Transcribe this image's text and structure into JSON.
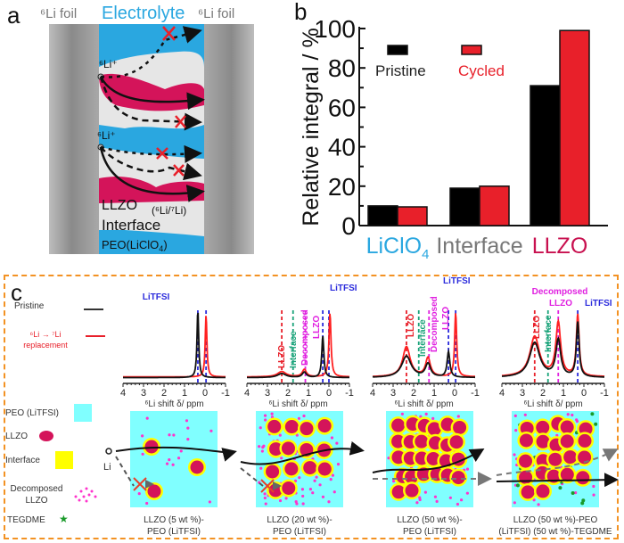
{
  "panel_a": {
    "letter": "a",
    "left_label": "⁶Li foil",
    "center_label": "Electrolyte",
    "right_label": "⁶Li foil",
    "ion_label_1": "⁶Li⁺",
    "ion_label_2": "⁶Li⁺",
    "llzo_label": "LLZO",
    "llzo_sub": "(⁶Li/⁷Li)",
    "interface_label": "Interface",
    "peo_label": "PEO(LiClO",
    "peo_sub": "4",
    "peo_close": ")",
    "colors": {
      "electrolyte": "#2aa7e0",
      "llzo": "#d4145a",
      "interface": "#e6e6e6",
      "foil": "#9a9a9a",
      "block": "#e8202a"
    }
  },
  "panel_b": {
    "letter": "b"
  },
  "chart_data": {
    "type": "bar",
    "title": "",
    "xlabel": "",
    "ylabel": "Relative integral / %",
    "ylim": [
      0,
      100
    ],
    "yticks": [
      0,
      20,
      40,
      60,
      80,
      100
    ],
    "categories": [
      "LiClO4",
      "Interface",
      "LLZO"
    ],
    "category_colors": [
      "#2aa7e0",
      "#777777",
      "#c8104f"
    ],
    "series": [
      {
        "name": "Pristine",
        "color": "#000000",
        "values": [
          10,
          19,
          71
        ]
      },
      {
        "name": "Cycled",
        "color": "#e8202a",
        "values": [
          9.5,
          20,
          99
        ]
      }
    ],
    "legend": "top-left",
    "grid": false
  },
  "panel_c": {
    "letter": "c",
    "legend": {
      "pristine": "Pristine",
      "replacement_1": "⁶Li → ⁷Li",
      "replacement_2": "replacement",
      "peo": "PEO (LiTFSI)",
      "llzo": "LLZO",
      "interface": "Interface",
      "decomposed_1": "Decomposed",
      "decomposed_2": "LLZO",
      "tegdme": "TEGDME",
      "li": "Li"
    },
    "spectra": [
      {
        "xlabel": "⁶Li shift δ/ ppm",
        "xticks": [
          "4",
          "3",
          "2",
          "1",
          "0",
          "-1"
        ],
        "labels": [
          {
            "text": "LiTFSI",
            "color": "#2b2bdc"
          }
        ]
      },
      {
        "xlabel": "⁶Li shift δ/ ppm",
        "xticks": [
          "4",
          "3",
          "2",
          "1",
          "0",
          "-1"
        ],
        "labels": [
          {
            "text": "LLZO",
            "color": "#e8202a"
          },
          {
            "text": "Interface",
            "color": "#1aa37a"
          },
          {
            "text": "Decomposed",
            "color": "#e020e0"
          },
          {
            "text": "LLZO",
            "color": "#e020e0"
          },
          {
            "text": "LiTFSI",
            "color": "#2b2bdc"
          }
        ]
      },
      {
        "xlabel": "⁶Li shift δ/ ppm",
        "xticks": [
          "4",
          "3",
          "2",
          "1",
          "0",
          "-1"
        ],
        "labels": [
          {
            "text": "LLZO",
            "color": "#e8202a"
          },
          {
            "text": "Interface",
            "color": "#1aa37a"
          },
          {
            "text": "Decomposed",
            "color": "#e020e0"
          },
          {
            "text": "LLZO",
            "color": "#e020e0"
          },
          {
            "text": "LiTFSI",
            "color": "#2b2bdc"
          }
        ]
      },
      {
        "xlabel": "⁶Li shift δ/ ppm",
        "xticks": [
          "4",
          "3",
          "2",
          "1",
          "0",
          "-1"
        ],
        "labels": [
          {
            "text": "LLZO",
            "color": "#e8202a"
          },
          {
            "text": "Interface",
            "color": "#1aa37a"
          },
          {
            "text": "Decomposed",
            "color": "#e020e0"
          },
          {
            "text": "LLZO",
            "color": "#e020e0"
          },
          {
            "text": "LiTFSI",
            "color": "#2b2bdc"
          }
        ]
      }
    ],
    "schematics": [
      {
        "caption_1": "LLZO (5 wt %)-",
        "caption_2": "PEO (LiTFSI)"
      },
      {
        "caption_1": "LLZO (20 wt %)-",
        "caption_2": "PEO (LiTFSI)"
      },
      {
        "caption_1": "LLZO (50 wt %)-",
        "caption_2": "PEO (LiTFSI)"
      },
      {
        "caption_1": "LLZO (50 wt %)-PEO",
        "caption_2": "(LiTFSI) (50 wt %)-TEGDME"
      }
    ]
  }
}
